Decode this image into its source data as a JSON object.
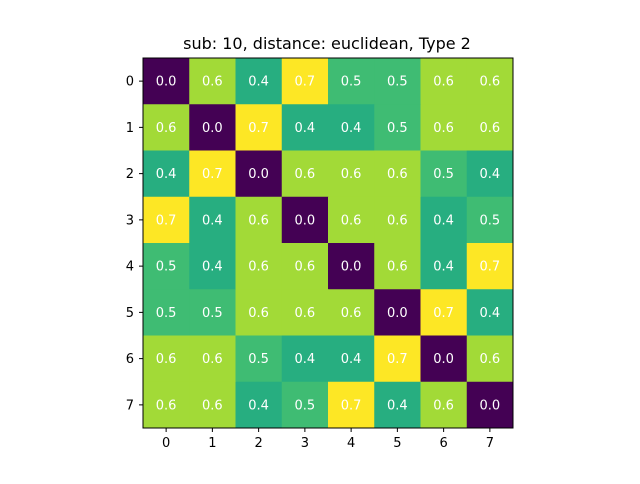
{
  "chart_data": {
    "type": "heatmap",
    "title": "sub: 10, distance: euclidean, Type 2",
    "xlabel": "",
    "ylabel": "",
    "x_ticks": [
      "0",
      "1",
      "2",
      "3",
      "4",
      "5",
      "6",
      "7"
    ],
    "y_ticks": [
      "0",
      "1",
      "2",
      "3",
      "4",
      "5",
      "6",
      "7"
    ],
    "values": [
      [
        0.0,
        0.6,
        0.4,
        0.7,
        0.5,
        0.5,
        0.6,
        0.6
      ],
      [
        0.6,
        0.0,
        0.7,
        0.4,
        0.4,
        0.5,
        0.6,
        0.6
      ],
      [
        0.4,
        0.7,
        0.0,
        0.6,
        0.6,
        0.6,
        0.5,
        0.4
      ],
      [
        0.7,
        0.4,
        0.6,
        0.0,
        0.6,
        0.6,
        0.4,
        0.5
      ],
      [
        0.5,
        0.4,
        0.6,
        0.6,
        0.0,
        0.6,
        0.4,
        0.7
      ],
      [
        0.5,
        0.5,
        0.6,
        0.6,
        0.6,
        0.0,
        0.7,
        0.4
      ],
      [
        0.6,
        0.6,
        0.5,
        0.4,
        0.4,
        0.7,
        0.0,
        0.6
      ],
      [
        0.6,
        0.6,
        0.4,
        0.5,
        0.7,
        0.4,
        0.6,
        0.0
      ]
    ],
    "colormap": "viridis",
    "colors": {
      "0.0": "#440154",
      "0.4": "#27AE80",
      "0.5": "#3FBC73",
      "0.6": "#A2DA37",
      "0.7": "#FDE725"
    },
    "annotation_color": "#ffffff",
    "grid": false
  }
}
